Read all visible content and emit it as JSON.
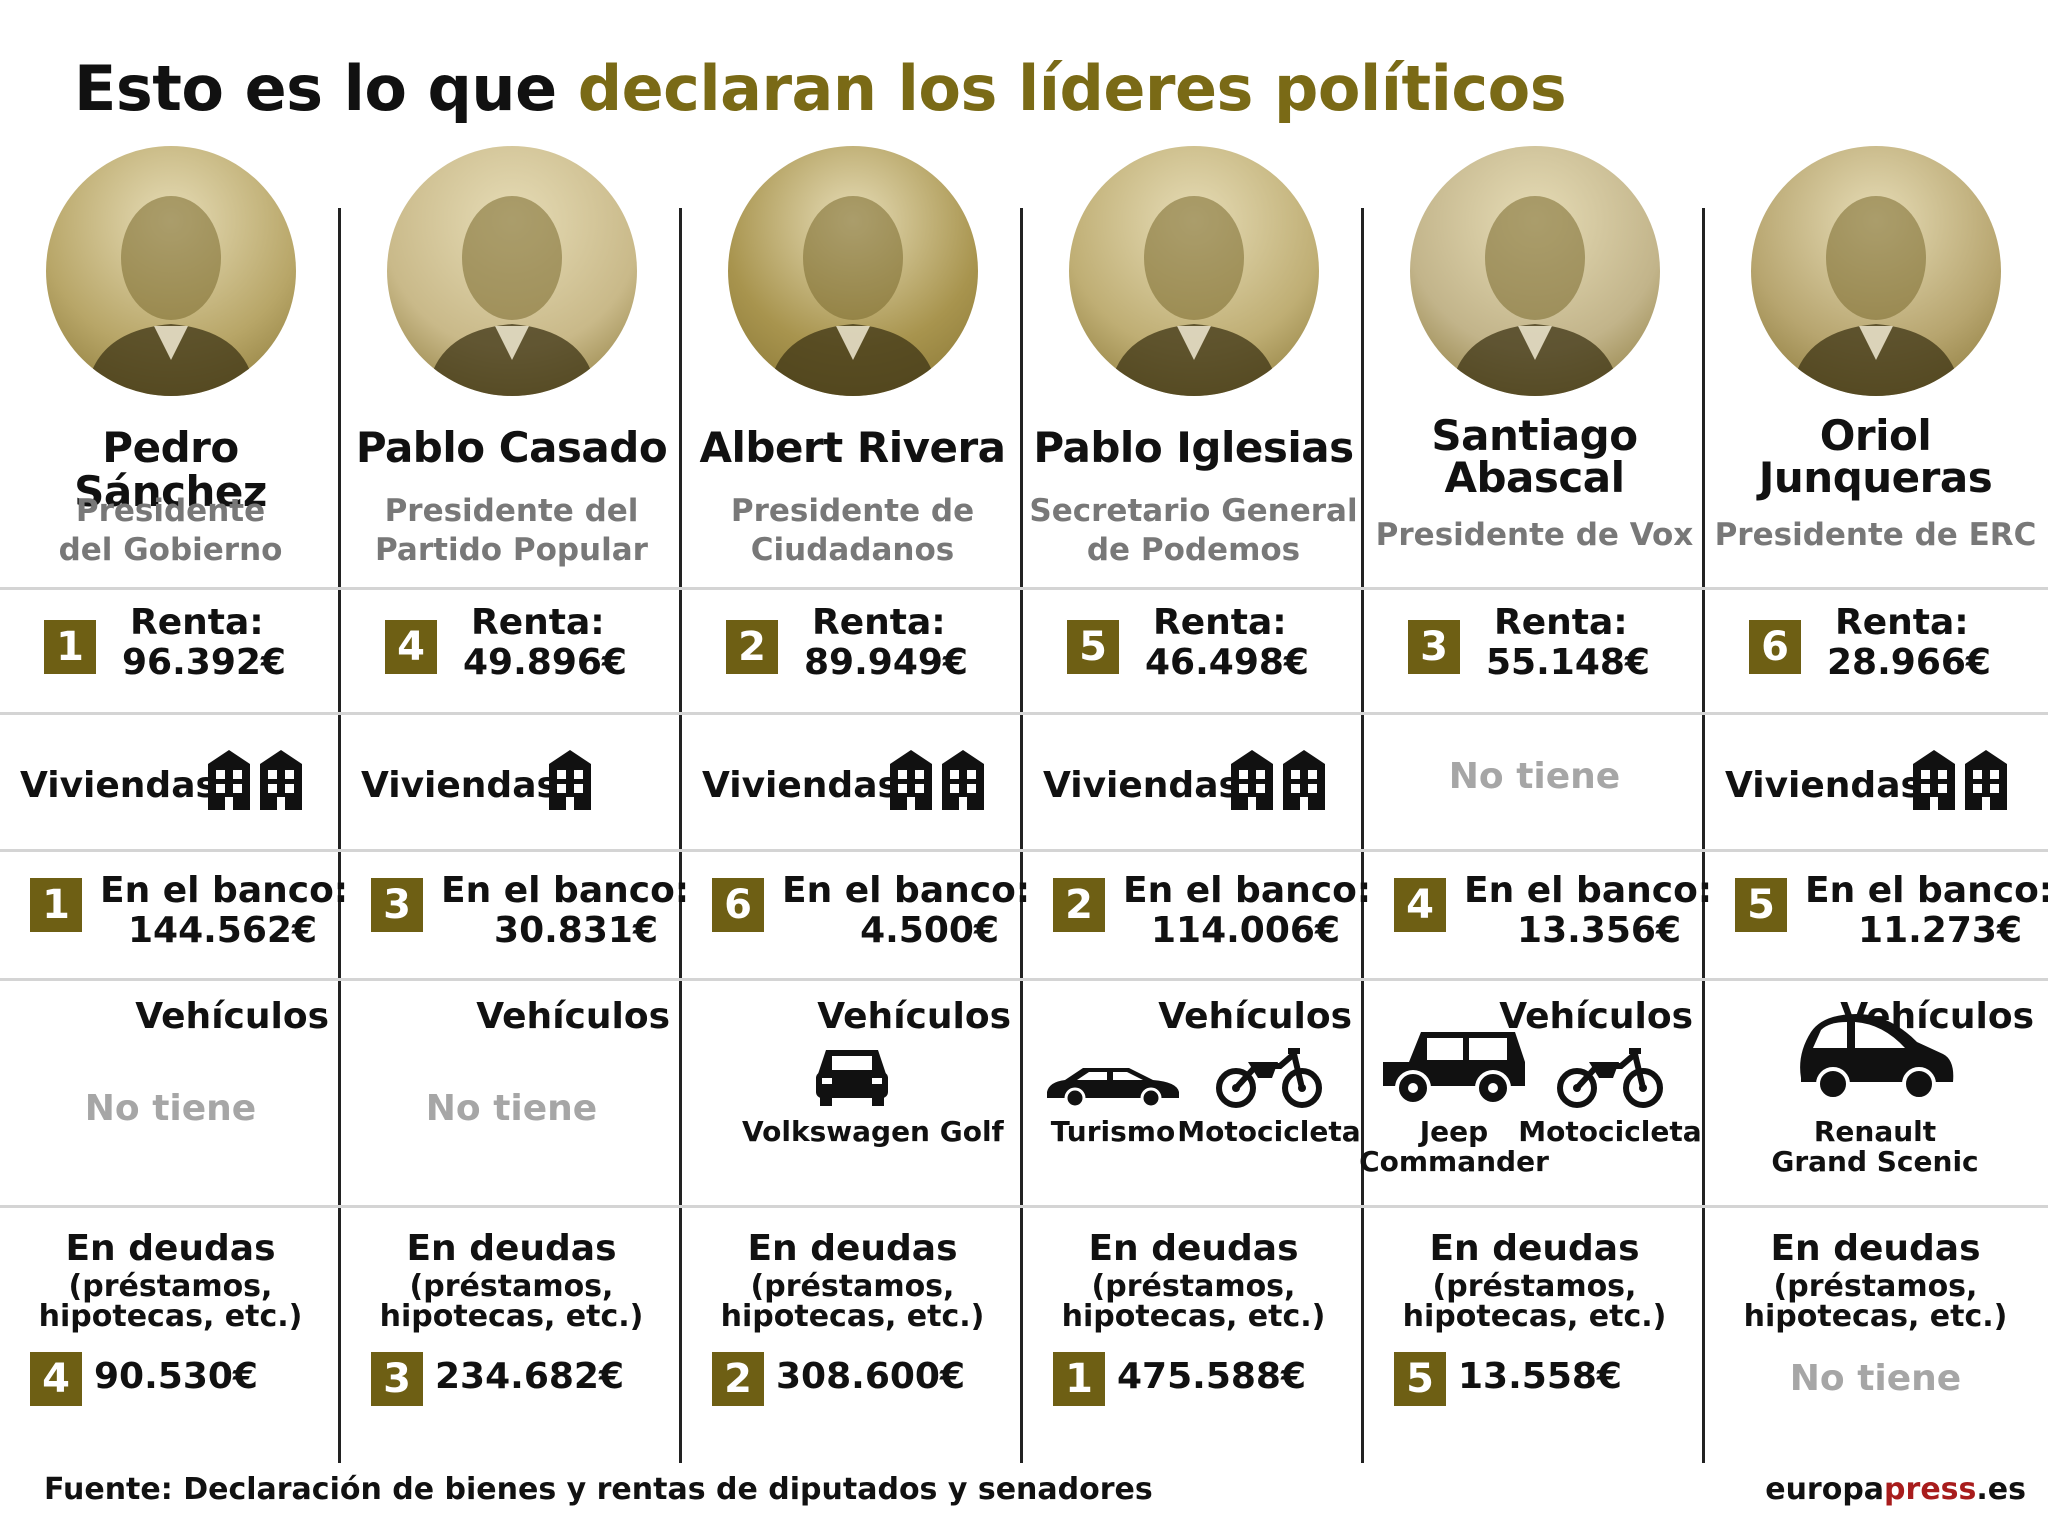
{
  "title": {
    "part1": "Esto es lo que ",
    "part2": "declaran los líderes políticos"
  },
  "labels": {
    "renta": "Renta:",
    "viviendas": "Viviendas",
    "banco": "En el banco:",
    "vehiculos": "Vehículos",
    "deudas": "En deudas",
    "deudas_sub1": "(préstamos,",
    "deudas_sub2": "hipotecas, etc.)",
    "no_tiene": "No tiene"
  },
  "leaders": [
    {
      "name_line1": "Pedro Sánchez",
      "name_line2": "",
      "role_line1": "Presidente",
      "role_line2": "del Gobierno",
      "renta_rank": "1",
      "renta": "96.392€",
      "viviendas": 2,
      "banco_rank": "1",
      "banco": "144.562€",
      "vehicles": [],
      "deudas_rank": "4",
      "deudas": "90.530€"
    },
    {
      "name_line1": "Pablo Casado",
      "name_line2": "",
      "role_line1": "Presidente del",
      "role_line2": "Partido Popular",
      "renta_rank": "4",
      "renta": "49.896€",
      "viviendas": 1,
      "banco_rank": "3",
      "banco": "30.831€",
      "vehicles": [],
      "deudas_rank": "3",
      "deudas": "234.682€"
    },
    {
      "name_line1": "Albert Rivera",
      "name_line2": "",
      "role_line1": "Presidente de",
      "role_line2": "Ciudadanos",
      "renta_rank": "2",
      "renta": "89.949€",
      "viviendas": 2,
      "banco_rank": "6",
      "banco": "4.500€",
      "vehicles": [
        {
          "label": "Volkswagen Golf",
          "icon": "car-rear-icon"
        }
      ],
      "deudas_rank": "2",
      "deudas": "308.600€"
    },
    {
      "name_line1": "Pablo Iglesias",
      "name_line2": "",
      "role_line1": "Secretario General",
      "role_line2": "de Podemos",
      "renta_rank": "5",
      "renta": "46.498€",
      "viviendas": 2,
      "banco_rank": "2",
      "banco": "114.006€",
      "vehicles": [
        {
          "label": "Turismo",
          "icon": "sedan-icon"
        },
        {
          "label": "Motocicleta",
          "icon": "motorcycle-icon"
        }
      ],
      "deudas_rank": "1",
      "deudas": "475.588€"
    },
    {
      "name_line1": "Santiago",
      "name_line2": "Abascal",
      "role_line1": "Presidente de Vox",
      "role_line2": "",
      "renta_rank": "3",
      "renta": "55.148€",
      "viviendas": 0,
      "banco_rank": "4",
      "banco": "13.356€",
      "vehicles": [
        {
          "label1": "Jeep",
          "label2": "Commander",
          "icon": "jeep-icon"
        },
        {
          "label": "Motocicleta",
          "icon": "motorcycle-icon"
        }
      ],
      "deudas_rank": "5",
      "deudas": "13.558€"
    },
    {
      "name_line1": "Oriol",
      "name_line2": "Junqueras",
      "role_line1": "Presidente de ERC",
      "role_line2": "",
      "renta_rank": "6",
      "renta": "28.966€",
      "viviendas": 2,
      "banco_rank": "5",
      "banco": "11.273€",
      "vehicles": [
        {
          "label1": "Renault",
          "label2": "Grand Scenic",
          "icon": "minivan-icon"
        }
      ],
      "deudas_rank": "",
      "deudas": "No tiene"
    }
  ],
  "footer": {
    "source": "Fuente: Declaración de bienes y rentas de diputados y senadores",
    "brand1": "europa",
    "brand2": "press",
    "brand3": ".es"
  },
  "colors": {
    "accent": "#7a6a16",
    "rank_bg": "#6e5f14",
    "muted": "#787878",
    "na": "#a6a6a6",
    "brand_red": "#a81c1c"
  }
}
